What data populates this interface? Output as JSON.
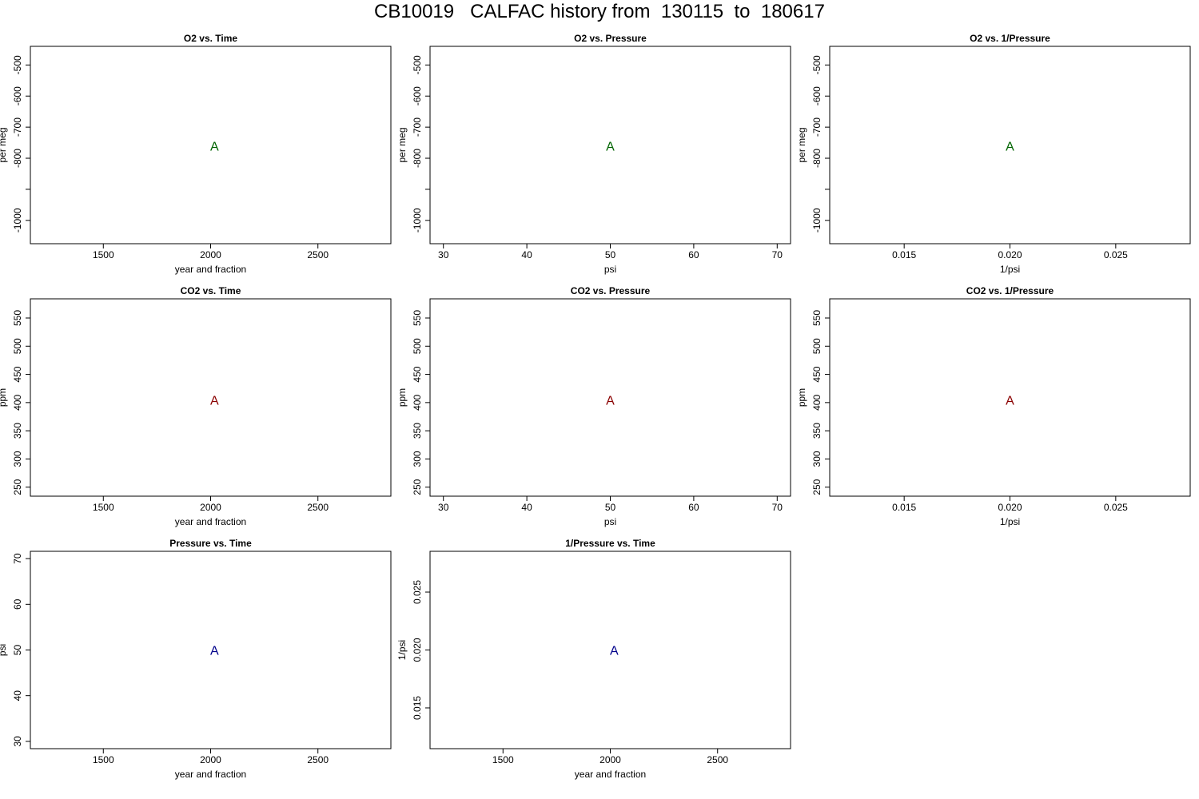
{
  "figure": {
    "title": "CB10019   CALFAC history from  130115  to  180617"
  },
  "colors": {
    "o2": "#006400",
    "co2": "#8B0000",
    "pressure": "#00008B",
    "frame": "#000000"
  },
  "chart_data": [
    {
      "type": "scatter",
      "title": "O2 vs. Time",
      "xlabel": "year and fraction",
      "ylabel": "per meg",
      "xlim": [
        1160,
        2840
      ],
      "ylim": [
        -1075,
        -440
      ],
      "xticks": [
        1500,
        2000,
        2500
      ],
      "xtick_labels": [
        "1500",
        "2000",
        "2500"
      ],
      "yticks": [
        -1000,
        -900,
        -800,
        -700,
        -600,
        -500
      ],
      "ytick_labels": [
        "-1000",
        "",
        "-800",
        "-700",
        "-600",
        "-500"
      ],
      "points": [
        {
          "x": 2018,
          "y": -760,
          "label": "A"
        }
      ],
      "color": "o2",
      "grid": false
    },
    {
      "type": "scatter",
      "title": "O2 vs. Pressure",
      "xlabel": "psi",
      "ylabel": "per meg",
      "xlim": [
        28.4,
        71.6
      ],
      "ylim": [
        -1075,
        -440
      ],
      "xticks": [
        30,
        40,
        50,
        60,
        70
      ],
      "xtick_labels": [
        "30",
        "40",
        "50",
        "60",
        "70"
      ],
      "yticks": [
        -1000,
        -900,
        -800,
        -700,
        -600,
        -500
      ],
      "ytick_labels": [
        "-1000",
        "",
        "-800",
        "-700",
        "-600",
        "-500"
      ],
      "points": [
        {
          "x": 50,
          "y": -760,
          "label": "A"
        }
      ],
      "color": "o2",
      "grid": false
    },
    {
      "type": "scatter",
      "title": "O2 vs. 1/Pressure",
      "xlabel": "1/psi",
      "ylabel": "per meg",
      "xlim": [
        0.01148,
        0.02852
      ],
      "ylim": [
        -1075,
        -440
      ],
      "xticks": [
        0.015,
        0.02,
        0.025
      ],
      "xtick_labels": [
        "0.015",
        "0.020",
        "0.025"
      ],
      "yticks": [
        -1000,
        -900,
        -800,
        -700,
        -600,
        -500
      ],
      "ytick_labels": [
        "-1000",
        "",
        "-800",
        "-700",
        "-600",
        "-500"
      ],
      "points": [
        {
          "x": 0.02,
          "y": -760,
          "label": "A"
        }
      ],
      "color": "o2",
      "grid": false
    },
    {
      "type": "scatter",
      "title": "CO2 vs. Time",
      "xlabel": "year and fraction",
      "ylabel": "ppm",
      "xlim": [
        1160,
        2840
      ],
      "ylim": [
        234,
        584
      ],
      "xticks": [
        1500,
        2000,
        2500
      ],
      "xtick_labels": [
        "1500",
        "2000",
        "2500"
      ],
      "yticks": [
        250,
        300,
        350,
        400,
        450,
        500,
        550
      ],
      "ytick_labels": [
        "250",
        "300",
        "350",
        "400",
        "450",
        "500",
        "550"
      ],
      "points": [
        {
          "x": 2018,
          "y": 405,
          "label": "A"
        }
      ],
      "color": "co2",
      "grid": false
    },
    {
      "type": "scatter",
      "title": "CO2 vs. Pressure",
      "xlabel": "psi",
      "ylabel": "ppm",
      "xlim": [
        28.4,
        71.6
      ],
      "ylim": [
        234,
        584
      ],
      "xticks": [
        30,
        40,
        50,
        60,
        70
      ],
      "xtick_labels": [
        "30",
        "40",
        "50",
        "60",
        "70"
      ],
      "yticks": [
        250,
        300,
        350,
        400,
        450,
        500,
        550
      ],
      "ytick_labels": [
        "250",
        "300",
        "350",
        "400",
        "450",
        "500",
        "550"
      ],
      "points": [
        {
          "x": 50,
          "y": 405,
          "label": "A"
        }
      ],
      "color": "co2",
      "grid": false
    },
    {
      "type": "scatter",
      "title": "CO2 vs. 1/Pressure",
      "xlabel": "1/psi",
      "ylabel": "ppm",
      "xlim": [
        0.01148,
        0.02852
      ],
      "ylim": [
        234,
        584
      ],
      "xticks": [
        0.015,
        0.02,
        0.025
      ],
      "xtick_labels": [
        "0.015",
        "0.020",
        "0.025"
      ],
      "yticks": [
        250,
        300,
        350,
        400,
        450,
        500,
        550
      ],
      "ytick_labels": [
        "250",
        "300",
        "350",
        "400",
        "450",
        "500",
        "550"
      ],
      "points": [
        {
          "x": 0.02,
          "y": 405,
          "label": "A"
        }
      ],
      "color": "co2",
      "grid": false
    },
    {
      "type": "scatter",
      "title": "Pressure vs. Time",
      "xlabel": "year and fraction",
      "ylabel": "psi",
      "xlim": [
        1160,
        2840
      ],
      "ylim": [
        28.4,
        71.6
      ],
      "xticks": [
        1500,
        2000,
        2500
      ],
      "xtick_labels": [
        "1500",
        "2000",
        "2500"
      ],
      "yticks": [
        30,
        40,
        50,
        60,
        70
      ],
      "ytick_labels": [
        "30",
        "40",
        "50",
        "60",
        "70"
      ],
      "points": [
        {
          "x": 2018,
          "y": 50,
          "label": "A"
        }
      ],
      "color": "pressure",
      "grid": false
    },
    {
      "type": "scatter",
      "title": "1/Pressure vs. Time",
      "xlabel": "year and fraction",
      "ylabel": "1/psi",
      "xlim": [
        1160,
        2840
      ],
      "ylim": [
        0.01148,
        0.02852
      ],
      "xticks": [
        1500,
        2000,
        2500
      ],
      "xtick_labels": [
        "1500",
        "2000",
        "2500"
      ],
      "yticks": [
        0.015,
        0.02,
        0.025
      ],
      "ytick_labels": [
        "0.015",
        "0.020",
        "0.025"
      ],
      "points": [
        {
          "x": 2018,
          "y": 0.02,
          "label": "A"
        }
      ],
      "color": "pressure",
      "grid": false
    }
  ]
}
